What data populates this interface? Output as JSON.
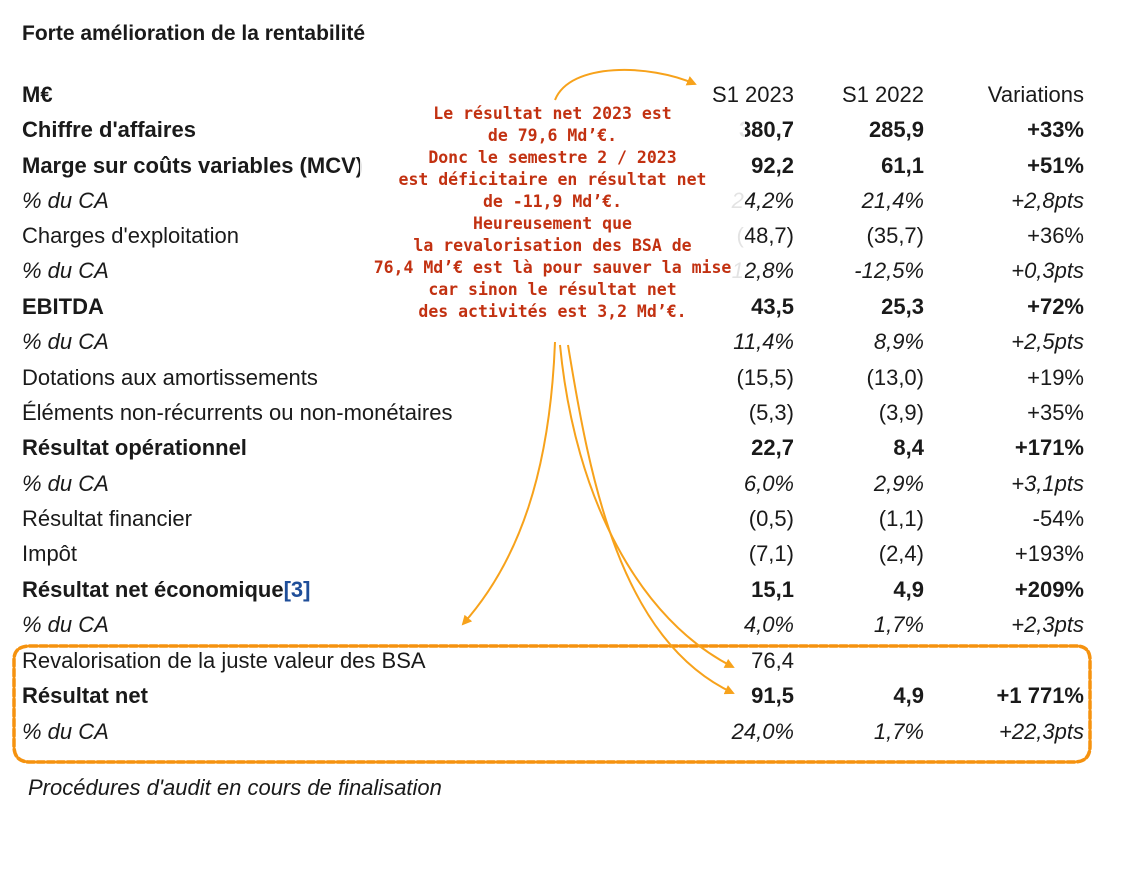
{
  "title": "Forte amélioration de la rentabilité",
  "header": {
    "label": "M€",
    "col1": "S1 2023",
    "col2": "S1 2022",
    "col3": "Variations"
  },
  "rows": [
    {
      "label": "Chiffre d'affaires",
      "v1": "380,7",
      "v2": "285,9",
      "v3": "+33%"
    },
    {
      "label": "Marge sur coûts variables (MCV)",
      "v1": "92,2",
      "v2": "61,1",
      "v3": "+51%"
    },
    {
      "label": "% du CA",
      "v1": "24,2%",
      "v2": "21,4%",
      "v3": "+2,8pts"
    },
    {
      "label": "Charges d'exploitation",
      "v1": "(48,7)",
      "v2": "(35,7)",
      "v3": "+36%"
    },
    {
      "label": "% du CA",
      "v1": "-12,8%",
      "v2": "-12,5%",
      "v3": "+0,3pts"
    },
    {
      "label": "EBITDA",
      "v1": "43,5",
      "v2": "25,3",
      "v3": "+72%"
    },
    {
      "label": "% du CA",
      "v1": "11,4%",
      "v2": "8,9%",
      "v3": "+2,5pts"
    },
    {
      "label": "Dotations aux amortissements",
      "v1": "(15,5)",
      "v2": "(13,0)",
      "v3": "+19%"
    },
    {
      "label": "Éléments non-récurrents ou non-monétaires",
      "v1": "(5,3)",
      "v2": "(3,9)",
      "v3": "+35%"
    },
    {
      "label": "Résultat opérationnel",
      "v1": "22,7",
      "v2": "8,4",
      "v3": "+171%"
    },
    {
      "label": "% du CA",
      "v1": "6,0%",
      "v2": "2,9%",
      "v3": "+3,1pts"
    },
    {
      "label": "Résultat financier",
      "v1": "(0,5)",
      "v2": "(1,1)",
      "v3": "-54%"
    },
    {
      "label": "Impôt",
      "v1": "(7,1)",
      "v2": "(2,4)",
      "v3": "+193%"
    },
    {
      "label": "Résultat net économique",
      "ref": "[3]",
      "v1": "15,1",
      "v2": "4,9",
      "v3": "+209%"
    },
    {
      "label": "% du CA",
      "v1": "4,0%",
      "v2": "1,7%",
      "v3": "+2,3pts"
    },
    {
      "label": "Revalorisation de la juste valeur des BSA",
      "v1": "76,4",
      "v2": "",
      "v3": ""
    },
    {
      "label": "Résultat net",
      "v1": "91,5",
      "v2": "4,9",
      "v3": "+1 771%"
    },
    {
      "label": "% du CA",
      "v1": "24,0%",
      "v2": "1,7%",
      "v3": "+22,3pts"
    }
  ],
  "annotation": {
    "lines": [
      "Le résultat net 2023 est",
      "de 79,6 Md’€.",
      "Donc le semestre 2 / 2023",
      "est déficitaire en résultat net",
      "de  -11,9 Md’€.",
      "Heureusement que",
      "la revalorisation des BSA de",
      "76,4 Md’€ est là pour sauver la mise",
      "car sinon le résultat net",
      "des activités est 3,2 Md’€."
    ],
    "text_color": "#c23111",
    "arrow_color": "#f7a21b",
    "highlight_color": "#f5920f"
  },
  "footnote": "Procédures d'audit en cours de finalisation"
}
